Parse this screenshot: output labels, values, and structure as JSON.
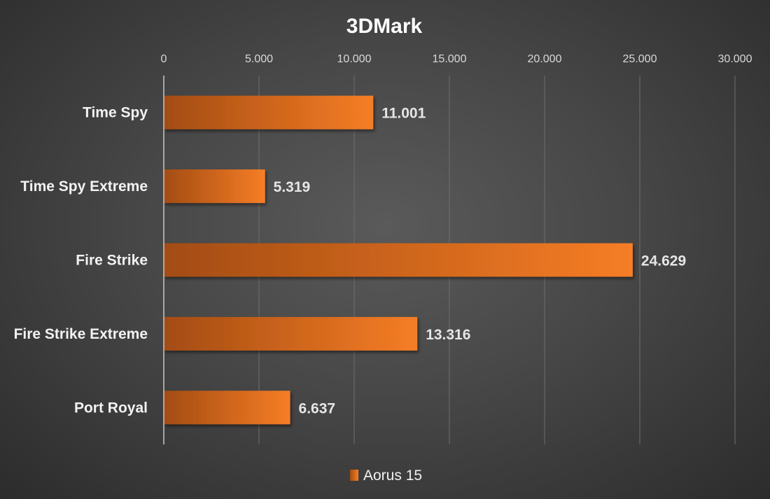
{
  "chart_data": {
    "type": "bar",
    "orientation": "horizontal",
    "title": "3DMark",
    "categories": [
      "Time Spy",
      "Time Spy Extreme",
      "Fire Strike",
      "Fire Strike Extreme",
      "Port Royal"
    ],
    "series": [
      {
        "name": "Aorus 15",
        "values": [
          11001,
          5319,
          24629,
          13316,
          6637
        ],
        "color": "#f07820"
      }
    ],
    "data_labels": [
      "11.001",
      "5.319",
      "24.629",
      "13.316",
      "6.637"
    ],
    "xlim": [
      0,
      30000
    ],
    "x_ticks": [
      0,
      5000,
      10000,
      15000,
      20000,
      25000,
      30000
    ],
    "x_tick_labels": [
      "0",
      "5.000",
      "10.000",
      "15.000",
      "20.000",
      "25.000",
      "30.000"
    ],
    "x_axis_position": "top",
    "grid": true,
    "legend": "bottom-center"
  }
}
